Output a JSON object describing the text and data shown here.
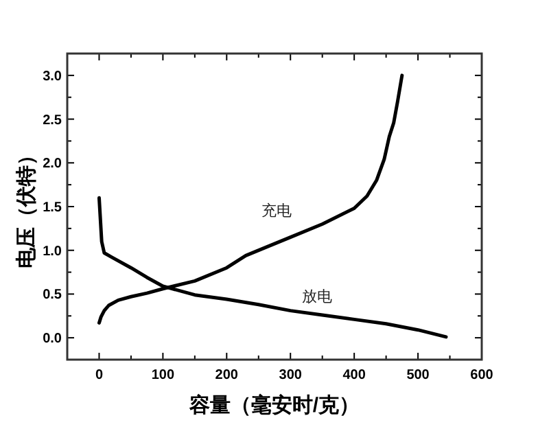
{
  "chart_data": {
    "type": "line",
    "xlabel": "容量（毫安时/克）",
    "ylabel": "电压（伏特）",
    "xlim": [
      -50,
      600
    ],
    "ylim": [
      -0.25,
      3.25
    ],
    "xticks": [
      0,
      {
        "value": 50,
        "label": null
      },
      100,
      {
        "value": 150,
        "label": null
      },
      200,
      {
        "value": 250,
        "label": null
      },
      300,
      {
        "value": 350,
        "label": null
      },
      400,
      {
        "value": 450,
        "label": null
      },
      500,
      {
        "value": 550,
        "label": null
      },
      600
    ],
    "yticks": [
      {
        "value": 0,
        "label": "0.0"
      },
      {
        "value": 0.25,
        "label": null
      },
      0.5,
      {
        "value": 0.75,
        "label": null
      },
      {
        "value": 1,
        "label": "1.0"
      },
      {
        "value": 1.25,
        "label": null
      },
      1.5,
      {
        "value": 1.75,
        "label": null
      },
      {
        "value": 2,
        "label": "2.0"
      },
      {
        "value": 2.25,
        "label": null
      },
      2.5,
      {
        "value": 2.75,
        "label": null
      },
      {
        "value": 3,
        "label": "3.0"
      }
    ],
    "grid": false,
    "marker": "none",
    "line_style": "solid",
    "series": [
      {
        "name": "充电",
        "color": "#000000",
        "x": [
          0,
          3,
          8,
          15,
          30,
          50,
          75,
          100,
          150,
          200,
          230,
          260,
          300,
          350,
          400,
          420,
          435,
          447,
          455,
          462,
          468,
          475
        ],
        "values": [
          0.17,
          0.24,
          0.31,
          0.37,
          0.43,
          0.47,
          0.51,
          0.56,
          0.65,
          0.8,
          0.94,
          1.03,
          1.15,
          1.3,
          1.48,
          1.62,
          1.8,
          2.04,
          2.3,
          2.46,
          2.7,
          3.0
        ]
      },
      {
        "name": "放电",
        "color": "#000000",
        "x": [
          0,
          2,
          4,
          8,
          20,
          50,
          75,
          100,
          150,
          200,
          250,
          300,
          350,
          400,
          450,
          500,
          544
        ],
        "values": [
          1.6,
          1.35,
          1.1,
          0.97,
          0.92,
          0.8,
          0.69,
          0.59,
          0.49,
          0.44,
          0.38,
          0.31,
          0.26,
          0.21,
          0.16,
          0.09,
          0.01
        ]
      }
    ]
  }
}
